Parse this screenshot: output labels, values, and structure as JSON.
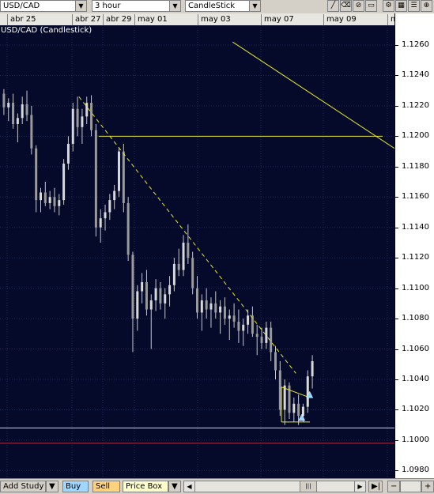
{
  "toolbar": {
    "symbol": "USD/CAD",
    "interval": "3 hour",
    "chart_type": "CandleStick",
    "tools": [
      "draw-line-icon",
      "eraser-icon",
      "no-draw-icon",
      "fit-icon",
      "settings-icon"
    ]
  },
  "dates": [
    "abr 25",
    "abr 27",
    "abr 29",
    "may 01",
    "may 03",
    "may 07",
    "may 09",
    "m"
  ],
  "chart_title": "USD/CAD (Candlestick)",
  "bottom": {
    "add_study": "Add Study",
    "buy": "Buy",
    "sell": "Sell",
    "price_box": "Price Box",
    "colors": {
      "buy": "#9fd7ff",
      "sell": "#ffd280",
      "price_box": "#ffffcc"
    }
  },
  "chart_data": {
    "type": "candlestick",
    "title": "USD/CAD (Candlestick)",
    "x_labels": [
      "abr 25",
      "abr 27",
      "abr 29",
      "may 01",
      "may 03",
      "may 07",
      "may 09"
    ],
    "y_ticks": [
      "1.1260",
      "1.1240",
      "1.1220",
      "1.1200",
      "1.1180",
      "1.1160",
      "1.1140",
      "1.1120",
      "1.1100",
      "1.1080",
      "1.1060",
      "1.1040",
      "1.1020",
      "1.1000",
      "1.0980"
    ],
    "ylim": [
      1.0975,
      1.1273
    ],
    "candles": [
      [
        1.1228,
        1.1231,
        1.1214,
        1.1219
      ],
      [
        1.1219,
        1.1225,
        1.121,
        1.1222
      ],
      [
        1.1222,
        1.1228,
        1.1205,
        1.1208
      ],
      [
        1.1208,
        1.1215,
        1.1196,
        1.1212
      ],
      [
        1.1212,
        1.1226,
        1.1208,
        1.1221
      ],
      [
        1.1221,
        1.123,
        1.121,
        1.1214
      ],
      [
        1.1214,
        1.122,
        1.1188,
        1.1192
      ],
      [
        1.1192,
        1.1194,
        1.115,
        1.1158
      ],
      [
        1.1158,
        1.1166,
        1.115,
        1.1163
      ],
      [
        1.1163,
        1.117,
        1.1154,
        1.1156
      ],
      [
        1.1156,
        1.1164,
        1.1152,
        1.116
      ],
      [
        1.116,
        1.1166,
        1.115,
        1.1154
      ],
      [
        1.1154,
        1.1162,
        1.1148,
        1.1158
      ],
      [
        1.1158,
        1.1185,
        1.1155,
        1.1182
      ],
      [
        1.1182,
        1.12,
        1.1178,
        1.1195
      ],
      [
        1.1195,
        1.1222,
        1.119,
        1.1218
      ],
      [
        1.1218,
        1.1226,
        1.12,
        1.1206
      ],
      [
        1.1206,
        1.1218,
        1.1195,
        1.1213
      ],
      [
        1.1213,
        1.1226,
        1.1208,
        1.1222
      ],
      [
        1.1222,
        1.1227,
        1.12,
        1.1204
      ],
      [
        1.1204,
        1.1208,
        1.1134,
        1.114
      ],
      [
        1.114,
        1.1152,
        1.113,
        1.1146
      ],
      [
        1.1146,
        1.1155,
        1.1138,
        1.115
      ],
      [
        1.115,
        1.1162,
        1.1145,
        1.1158
      ],
      [
        1.1158,
        1.1168,
        1.1152,
        1.1164
      ],
      [
        1.1164,
        1.1192,
        1.116,
        1.119
      ],
      [
        1.119,
        1.1195,
        1.115,
        1.1156
      ],
      [
        1.1156,
        1.116,
        1.1118,
        1.1122
      ],
      [
        1.1122,
        1.1124,
        1.1058,
        1.108
      ],
      [
        1.108,
        1.1102,
        1.1072,
        1.1098
      ],
      [
        1.1098,
        1.111,
        1.109,
        1.1104
      ],
      [
        1.1104,
        1.1112,
        1.1082,
        1.1086
      ],
      [
        1.1086,
        1.1096,
        1.106,
        1.1092
      ],
      [
        1.1092,
        1.1106,
        1.1085,
        1.11
      ],
      [
        1.11,
        1.1104,
        1.1086,
        1.109
      ],
      [
        1.109,
        1.11,
        1.108,
        1.1096
      ],
      [
        1.1096,
        1.1108,
        1.1088,
        1.1102
      ],
      [
        1.1102,
        1.112,
        1.1098,
        1.1116
      ],
      [
        1.1116,
        1.1126,
        1.1108,
        1.1112
      ],
      [
        1.1112,
        1.1135,
        1.1108,
        1.113
      ],
      [
        1.113,
        1.1142,
        1.1116,
        1.112
      ],
      [
        1.112,
        1.1124,
        1.1096,
        1.11
      ],
      [
        1.11,
        1.1108,
        1.108,
        1.1084
      ],
      [
        1.1084,
        1.1096,
        1.1072,
        1.1092
      ],
      [
        1.1092,
        1.11,
        1.108,
        1.1086
      ],
      [
        1.1086,
        1.1094,
        1.1074,
        1.109
      ],
      [
        1.109,
        1.1098,
        1.108,
        1.1084
      ],
      [
        1.1084,
        1.1092,
        1.107,
        1.1088
      ],
      [
        1.1088,
        1.1094,
        1.1076,
        1.108
      ],
      [
        1.108,
        1.1086,
        1.1066,
        1.1082
      ],
      [
        1.1082,
        1.109,
        1.1074,
        1.1078
      ],
      [
        1.1078,
        1.1086,
        1.1064,
        1.1072
      ],
      [
        1.1072,
        1.108,
        1.1062,
        1.1076
      ],
      [
        1.1076,
        1.1086,
        1.107,
        1.1082
      ],
      [
        1.1082,
        1.1088,
        1.1068,
        1.107
      ],
      [
        1.107,
        1.1076,
        1.1056,
        1.1068
      ],
      [
        1.1068,
        1.1074,
        1.106,
        1.1064
      ],
      [
        1.1064,
        1.1078,
        1.106,
        1.1074
      ],
      [
        1.1074,
        1.1078,
        1.1052,
        1.1058
      ],
      [
        1.1058,
        1.1062,
        1.104,
        1.1046
      ],
      [
        1.1046,
        1.1052,
        1.1016,
        1.102
      ],
      [
        1.102,
        1.104,
        1.101,
        1.1036
      ],
      [
        1.1036,
        1.1038,
        1.1014,
        1.1018
      ],
      [
        1.1018,
        1.1028,
        1.1012,
        1.1024
      ],
      [
        1.1024,
        1.103,
        1.101,
        1.1016
      ],
      [
        1.1016,
        1.1024,
        1.1012,
        1.1022
      ],
      [
        1.1022,
        1.1046,
        1.1018,
        1.1042
      ],
      [
        1.1042,
        1.1056,
        1.1034,
        1.1052
      ]
    ],
    "lines": [
      {
        "style": "dashed",
        "color": "#e6e632",
        "from": [
          0.2,
          1.1226
        ],
        "to": [
          0.75,
          1.1044
        ]
      },
      {
        "style": "solid",
        "color": "#e6e632",
        "from": [
          0.25,
          1.12
        ],
        "to": [
          0.97,
          1.12
        ]
      },
      {
        "style": "solid",
        "color": "#e6e632",
        "from": [
          0.59,
          1.1262
        ],
        "to": [
          1.0,
          1.1192
        ]
      },
      {
        "style": "solid",
        "color": "#e6e632",
        "from": [
          0.0,
          1.1008
        ],
        "to": [
          1.0,
          1.1008
        ]
      },
      {
        "style": "solid",
        "color": "#b03040",
        "from": [
          0.0,
          1.0998
        ],
        "to": [
          1.0,
          1.0998
        ]
      }
    ],
    "markers": [
      {
        "shape": "triangle",
        "color": "#8fd8ff",
        "x": 0.785,
        "y": 1.103
      },
      {
        "shape": "triangle",
        "color": "#8fd8ff",
        "x": 0.765,
        "y": 1.1015
      }
    ]
  }
}
